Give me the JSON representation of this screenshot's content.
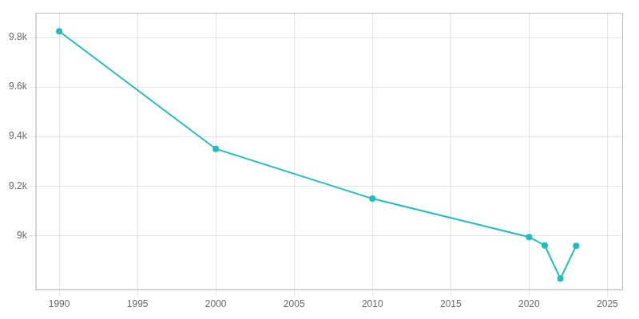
{
  "chart_data": {
    "type": "line",
    "x": [
      1990,
      2000,
      2010,
      2020,
      2021,
      2022,
      2023
    ],
    "values": [
      9825,
      9350,
      9149,
      8994,
      8960,
      8826,
      8958
    ],
    "color": "#20BDBE",
    "marker": "circle",
    "xlim": [
      1988.5,
      2026
    ],
    "ylim": [
      8780,
      9900
    ],
    "xticks": [
      1990,
      1995,
      2000,
      2005,
      2010,
      2015,
      2020,
      2025
    ],
    "yticks": [
      {
        "value": 9000,
        "label": "9k"
      },
      {
        "value": 9200,
        "label": "9.2k"
      },
      {
        "value": 9400,
        "label": "9.4k"
      },
      {
        "value": 9600,
        "label": "9.6k"
      },
      {
        "value": 9800,
        "label": "9.8k"
      }
    ],
    "grid": true
  }
}
